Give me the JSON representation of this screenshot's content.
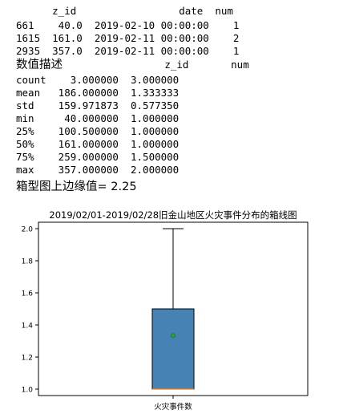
{
  "top_table": {
    "header": "      z_id                 date  num",
    "rows": [
      "661    40.0  2019-02-10 00:00:00    1",
      "1615  161.0  2019-02-11 00:00:00    2",
      "2935  357.0  2019-02-11 00:00:00    1"
    ]
  },
  "describe": {
    "title": "数值描述",
    "header": "              z_id       num",
    "rows": [
      "count    3.000000  3.000000",
      "mean   186.000000  1.333333",
      "std    159.971873  0.577350",
      "min     40.000000  1.000000",
      "25%    100.500000  1.000000",
      "50%    161.000000  1.000000",
      "75%    259.000000  1.500000",
      "max    357.000000  2.000000"
    ]
  },
  "upper_whisker_line": "箱型图上边缘值= 2.25",
  "chart_data": {
    "type": "box",
    "title": "2019/02/01-2019/02/28旧金山地区火灾事件分布的箱线图",
    "categories": [
      "火灾事件数"
    ],
    "ylim": [
      0.96,
      2.04
    ],
    "yticks": [
      1.0,
      1.2,
      1.4,
      1.6,
      1.8,
      2.0
    ],
    "ytick_labels": [
      "1.0",
      "1.2",
      "1.4",
      "1.6",
      "1.8",
      "2.0"
    ],
    "box": {
      "min": 1.0,
      "q1": 1.0,
      "median": 1.0,
      "q3": 1.5,
      "max": 2.0,
      "mean": 1.333333
    },
    "colors": {
      "box_fill": "#4682b4",
      "median": "#ff7f0e",
      "mean_marker": "#2ca02c",
      "axis": "#000000"
    }
  }
}
